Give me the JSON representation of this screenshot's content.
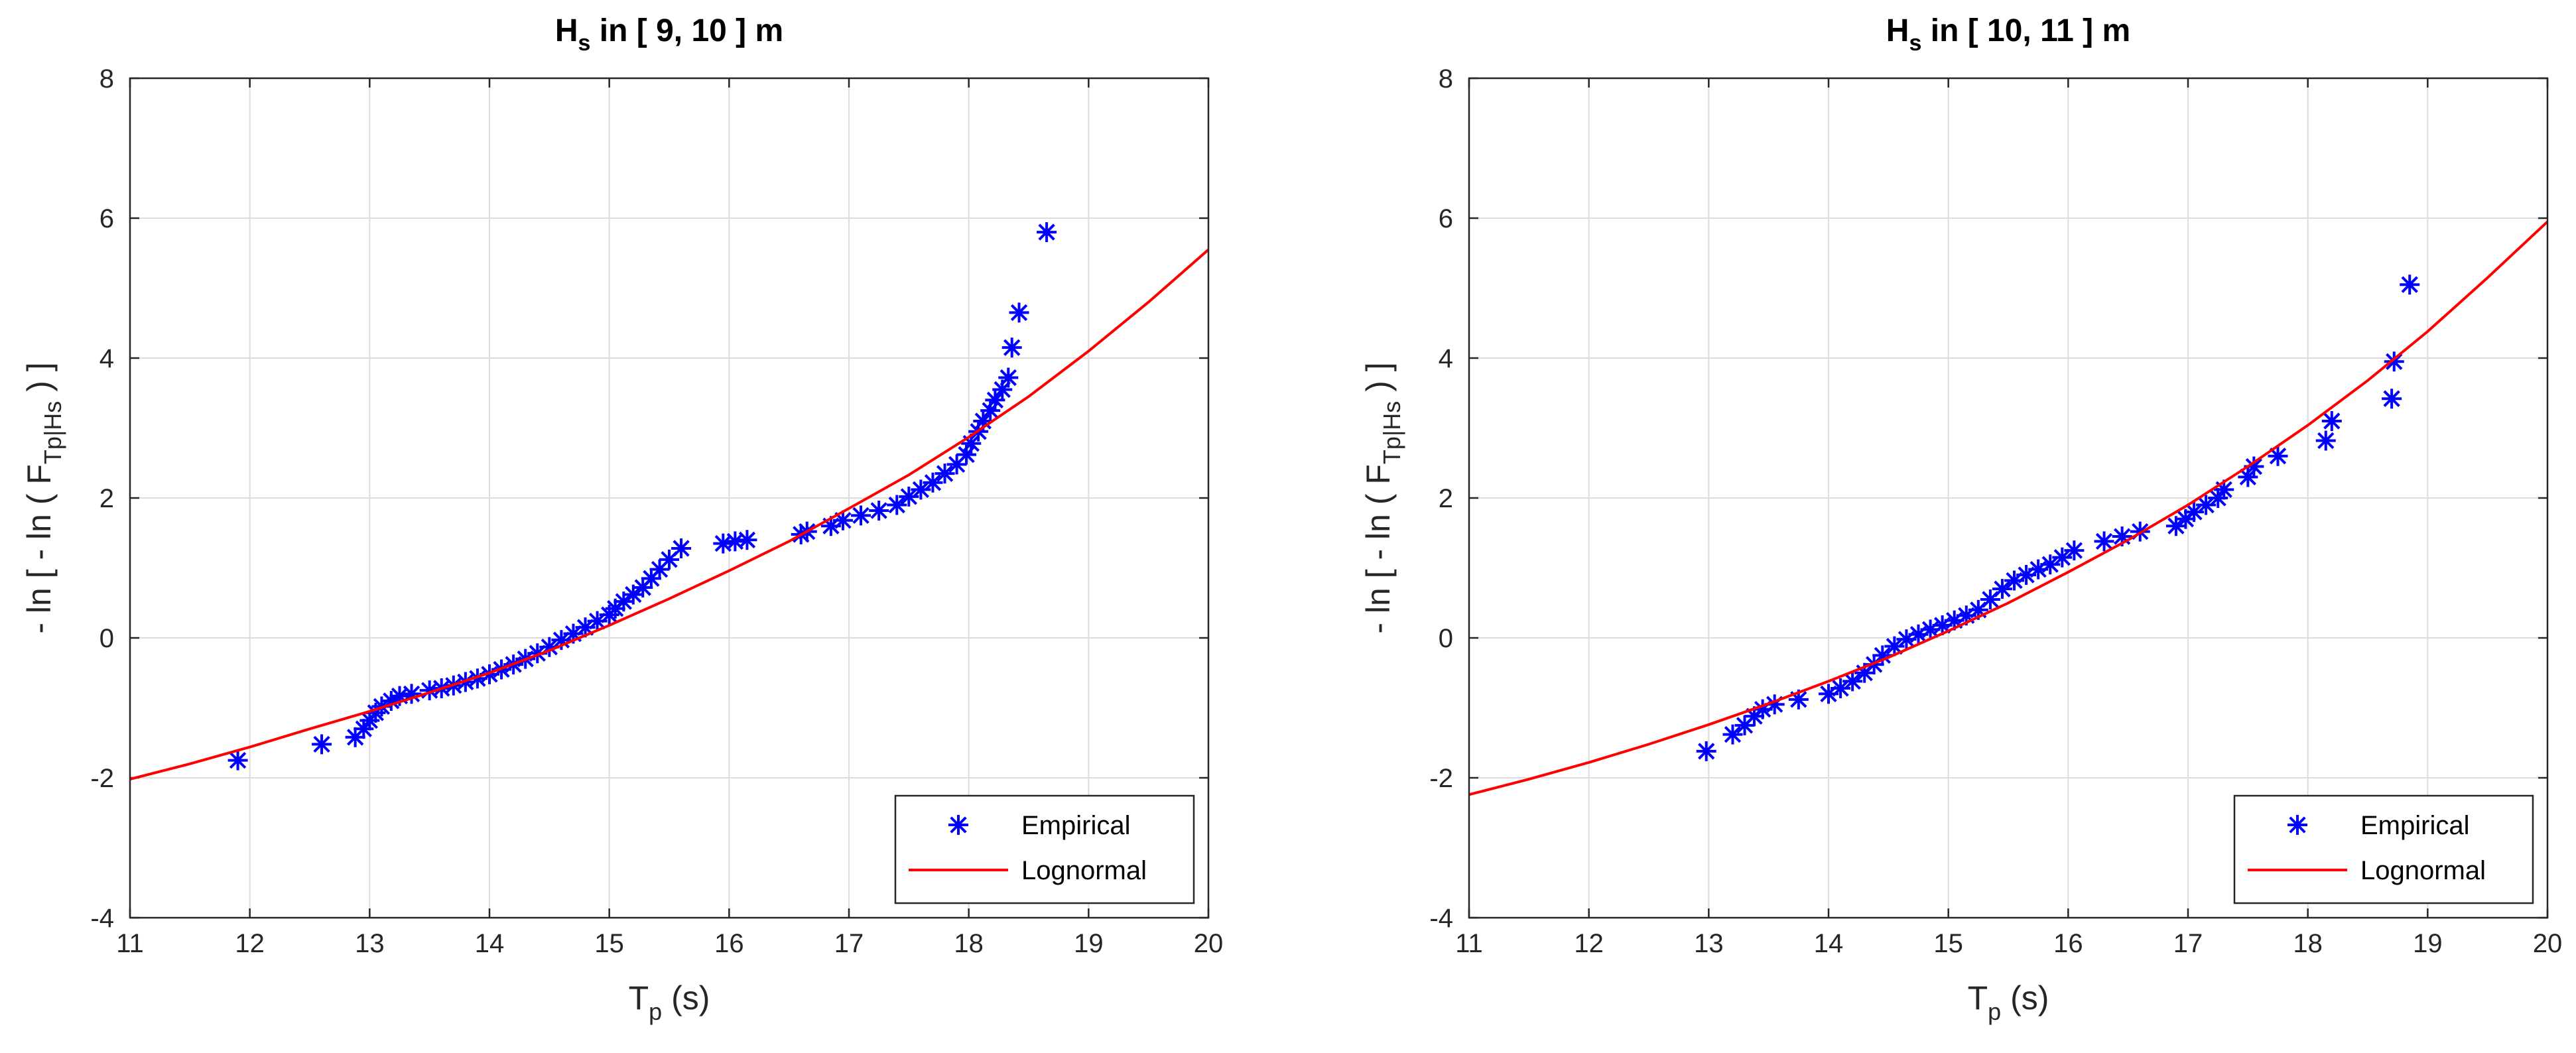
{
  "chart_data": [
    {
      "type": "scatter",
      "title_main": "H",
      "title_sub": "s",
      "title_rest": " in [ 9, 10 ] m",
      "xlabel_main": "T",
      "xlabel_sub": "p",
      "xlabel_rest": " (s)",
      "ylabel_pre": "- ln [ - ln ( F",
      "ylabel_sub": "Tp|Hs",
      "ylabel_post": " ) ]",
      "xlim": [
        11,
        20
      ],
      "ylim": [
        -4,
        8
      ],
      "xticks": [
        "11",
        "12",
        "13",
        "14",
        "15",
        "16",
        "17",
        "18",
        "19",
        "20"
      ],
      "yticks": [
        "-4",
        "-2",
        "0",
        "2",
        "4",
        "6",
        "8"
      ],
      "grid": true,
      "legend_position": "bottom-right",
      "series": [
        {
          "name": "Empirical",
          "kind": "markers",
          "color": "#0000ff",
          "points": [
            [
              11.9,
              -1.75
            ],
            [
              12.6,
              -1.52
            ],
            [
              12.88,
              -1.42
            ],
            [
              12.95,
              -1.3
            ],
            [
              13.0,
              -1.18
            ],
            [
              13.05,
              -1.07
            ],
            [
              13.1,
              -0.98
            ],
            [
              13.18,
              -0.9
            ],
            [
              13.25,
              -0.83
            ],
            [
              13.35,
              -0.8
            ],
            [
              13.5,
              -0.75
            ],
            [
              13.6,
              -0.72
            ],
            [
              13.7,
              -0.68
            ],
            [
              13.8,
              -0.63
            ],
            [
              13.9,
              -0.58
            ],
            [
              14.0,
              -0.52
            ],
            [
              14.1,
              -0.45
            ],
            [
              14.2,
              -0.38
            ],
            [
              14.3,
              -0.3
            ],
            [
              14.4,
              -0.22
            ],
            [
              14.5,
              -0.13
            ],
            [
              14.6,
              -0.03
            ],
            [
              14.7,
              0.06
            ],
            [
              14.8,
              0.15
            ],
            [
              14.9,
              0.24
            ],
            [
              15.0,
              0.33
            ],
            [
              15.05,
              0.42
            ],
            [
              15.12,
              0.52
            ],
            [
              15.2,
              0.62
            ],
            [
              15.28,
              0.72
            ],
            [
              15.35,
              0.85
            ],
            [
              15.42,
              0.98
            ],
            [
              15.5,
              1.12
            ],
            [
              15.6,
              1.28
            ],
            [
              15.95,
              1.35
            ],
            [
              16.05,
              1.38
            ],
            [
              16.15,
              1.4
            ],
            [
              16.6,
              1.48
            ],
            [
              16.65,
              1.52
            ],
            [
              16.85,
              1.6
            ],
            [
              16.95,
              1.68
            ],
            [
              17.1,
              1.75
            ],
            [
              17.25,
              1.82
            ],
            [
              17.4,
              1.9
            ],
            [
              17.5,
              2.02
            ],
            [
              17.6,
              2.12
            ],
            [
              17.7,
              2.22
            ],
            [
              17.8,
              2.35
            ],
            [
              17.9,
              2.48
            ],
            [
              17.98,
              2.62
            ],
            [
              18.02,
              2.78
            ],
            [
              18.08,
              2.95
            ],
            [
              18.12,
              3.1
            ],
            [
              18.18,
              3.25
            ],
            [
              18.22,
              3.4
            ],
            [
              18.28,
              3.55
            ],
            [
              18.33,
              3.72
            ],
            [
              18.36,
              4.15
            ],
            [
              18.42,
              4.65
            ],
            [
              18.65,
              5.8
            ]
          ]
        },
        {
          "name": "Lognormal",
          "kind": "line",
          "color": "#ff0000",
          "points": [
            [
              11.0,
              -2.02
            ],
            [
              11.5,
              -1.8
            ],
            [
              12.0,
              -1.56
            ],
            [
              12.5,
              -1.3
            ],
            [
              13.0,
              -1.05
            ],
            [
              13.5,
              -0.78
            ],
            [
              14.0,
              -0.5
            ],
            [
              14.5,
              -0.18
            ],
            [
              15.0,
              0.18
            ],
            [
              15.5,
              0.56
            ],
            [
              16.0,
              0.96
            ],
            [
              16.5,
              1.38
            ],
            [
              17.0,
              1.85
            ],
            [
              17.5,
              2.33
            ],
            [
              18.0,
              2.87
            ],
            [
              18.5,
              3.45
            ],
            [
              19.0,
              4.1
            ],
            [
              19.5,
              4.8
            ],
            [
              20.0,
              5.55
            ]
          ]
        }
      ]
    },
    {
      "type": "scatter",
      "title_main": "H",
      "title_sub": "s",
      "title_rest": " in [ 10, 11 ] m",
      "xlabel_main": "T",
      "xlabel_sub": "p",
      "xlabel_rest": " (s)",
      "ylabel_pre": "- ln [ - ln ( F",
      "ylabel_sub": "Tp|Hs",
      "ylabel_post": " ) ]",
      "xlim": [
        11,
        20
      ],
      "ylim": [
        -4,
        8
      ],
      "xticks": [
        "11",
        "12",
        "13",
        "14",
        "15",
        "16",
        "17",
        "18",
        "19",
        "20"
      ],
      "yticks": [
        "-4",
        "-2",
        "0",
        "2",
        "4",
        "6",
        "8"
      ],
      "grid": true,
      "legend_position": "bottom-right",
      "series": [
        {
          "name": "Empirical",
          "kind": "markers",
          "color": "#0000ff",
          "points": [
            [
              12.98,
              -1.62
            ],
            [
              13.2,
              -1.38
            ],
            [
              13.3,
              -1.25
            ],
            [
              13.38,
              -1.12
            ],
            [
              13.45,
              -1.02
            ],
            [
              13.55,
              -0.95
            ],
            [
              13.75,
              -0.88
            ],
            [
              14.0,
              -0.8
            ],
            [
              14.1,
              -0.72
            ],
            [
              14.2,
              -0.62
            ],
            [
              14.3,
              -0.5
            ],
            [
              14.38,
              -0.38
            ],
            [
              14.45,
              -0.25
            ],
            [
              14.55,
              -0.12
            ],
            [
              14.65,
              -0.02
            ],
            [
              14.75,
              0.05
            ],
            [
              14.85,
              0.12
            ],
            [
              14.95,
              0.18
            ],
            [
              15.05,
              0.25
            ],
            [
              15.15,
              0.32
            ],
            [
              15.25,
              0.4
            ],
            [
              15.35,
              0.55
            ],
            [
              15.45,
              0.7
            ],
            [
              15.55,
              0.82
            ],
            [
              15.65,
              0.9
            ],
            [
              15.75,
              0.98
            ],
            [
              15.85,
              1.05
            ],
            [
              15.95,
              1.15
            ],
            [
              16.05,
              1.25
            ],
            [
              16.3,
              1.38
            ],
            [
              16.45,
              1.45
            ],
            [
              16.6,
              1.52
            ],
            [
              16.9,
              1.6
            ],
            [
              16.98,
              1.7
            ],
            [
              17.05,
              1.8
            ],
            [
              17.15,
              1.9
            ],
            [
              17.25,
              2.0
            ],
            [
              17.3,
              2.12
            ],
            [
              17.5,
              2.3
            ],
            [
              17.55,
              2.45
            ],
            [
              17.75,
              2.6
            ],
            [
              18.15,
              2.82
            ],
            [
              18.2,
              3.1
            ],
            [
              18.7,
              3.42
            ],
            [
              18.72,
              3.95
            ],
            [
              18.85,
              5.05
            ]
          ]
        },
        {
          "name": "Lognormal",
          "kind": "line",
          "color": "#ff0000",
          "points": [
            [
              11.0,
              -2.24
            ],
            [
              11.5,
              -2.02
            ],
            [
              12.0,
              -1.78
            ],
            [
              12.5,
              -1.52
            ],
            [
              13.0,
              -1.24
            ],
            [
              13.5,
              -0.94
            ],
            [
              14.0,
              -0.62
            ],
            [
              14.5,
              -0.28
            ],
            [
              15.0,
              0.1
            ],
            [
              15.5,
              0.5
            ],
            [
              16.0,
              0.94
            ],
            [
              16.5,
              1.4
            ],
            [
              17.0,
              1.9
            ],
            [
              17.5,
              2.45
            ],
            [
              18.0,
              3.04
            ],
            [
              18.5,
              3.68
            ],
            [
              19.0,
              4.38
            ],
            [
              19.5,
              5.15
            ],
            [
              20.0,
              5.95
            ]
          ]
        }
      ]
    }
  ]
}
